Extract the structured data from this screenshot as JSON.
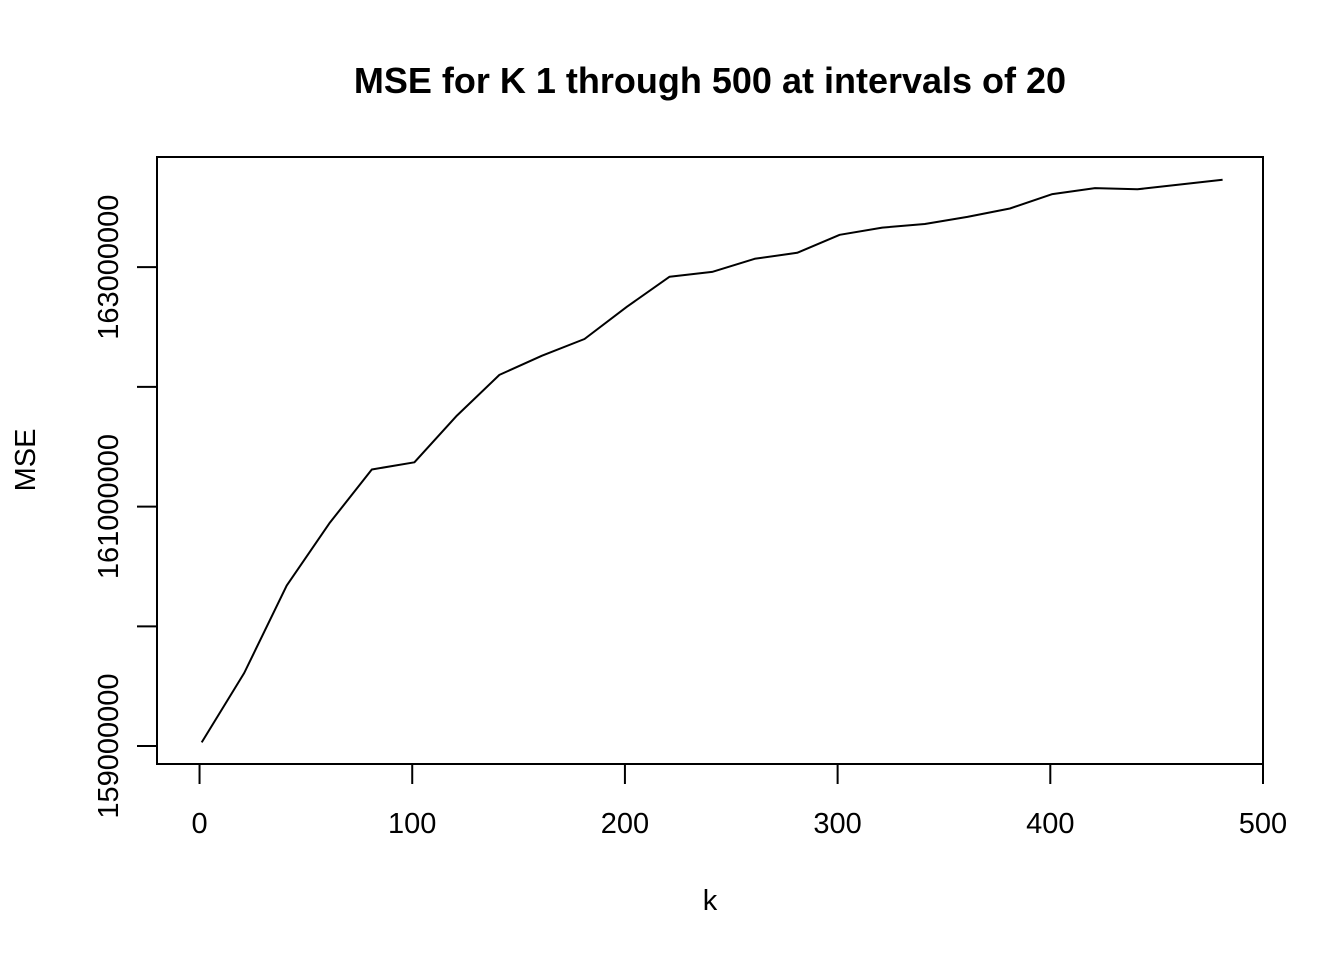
{
  "chart_data": {
    "type": "line",
    "title": "MSE for K 1 through 500 at intervals of 20",
    "xlabel": "k",
    "ylabel": "MSE",
    "xlim": [
      -20,
      500
    ],
    "ylim": [
      158850000,
      163920000
    ],
    "x_ticks": [
      {
        "value": 0,
        "label": "0"
      },
      {
        "value": 100,
        "label": "100"
      },
      {
        "value": 200,
        "label": "200"
      },
      {
        "value": 300,
        "label": "300"
      },
      {
        "value": 400,
        "label": "400"
      },
      {
        "value": 500,
        "label": "500"
      }
    ],
    "y_ticks": [
      {
        "value": 159000000,
        "label": "159000000"
      },
      {
        "value": 160000000,
        "label": ""
      },
      {
        "value": 161000000,
        "label": "161000000"
      },
      {
        "value": 162000000,
        "label": ""
      },
      {
        "value": 163000000,
        "label": "163000000"
      }
    ],
    "grid": false,
    "legend": "none",
    "series": [
      {
        "x": [
          1,
          21,
          41,
          61,
          81,
          101,
          121,
          141,
          161,
          181,
          201,
          221,
          241,
          261,
          281,
          301,
          321,
          341,
          361,
          381,
          401,
          421,
          441,
          461,
          481
        ],
        "y": [
          159030000,
          159610000,
          160340000,
          160860000,
          161310000,
          161370000,
          161760000,
          162100000,
          162260000,
          162400000,
          162670000,
          162920000,
          162960000,
          163070000,
          163120000,
          163270000,
          163330000,
          163360000,
          163420000,
          163490000,
          163610000,
          163660000,
          163650000,
          163690000,
          163730000
        ]
      }
    ]
  }
}
